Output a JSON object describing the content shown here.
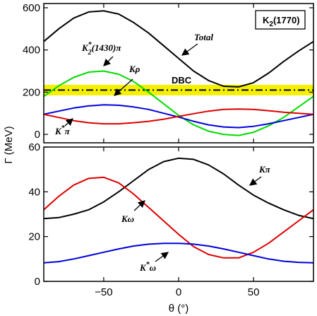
{
  "chart_data": [
    {
      "type": "line",
      "title": "",
      "xlabel": "",
      "ylabel": "",
      "xlim": [
        -90,
        90
      ],
      "ylim": [
        -40,
        620
      ],
      "x_ticks": [
        -50,
        0,
        50
      ],
      "y_ticks": [
        0,
        200,
        400,
        600
      ],
      "y_tick_labels": [
        "0",
        "200",
        "400",
        "600"
      ],
      "x_tick_labels": [
        "",
        "",
        ""
      ],
      "legend_box": {
        "prefix": "K",
        "sub": "2",
        "suffix": "(1770)",
        "color": "#000000",
        "placement": "top-right"
      },
      "band": {
        "label": "DBC",
        "y": 210,
        "half_width": 25,
        "color": "#f5f000",
        "line_color": "#000000"
      },
      "series": [
        {
          "name": "Total",
          "color": "#000000",
          "x": [
            -90,
            -80,
            -70,
            -60,
            -50,
            -40,
            -30,
            -20,
            -10,
            0,
            10,
            20,
            30,
            40,
            50,
            60,
            70,
            80,
            90
          ],
          "values": [
            440,
            500,
            551,
            580,
            585,
            570,
            530,
            480,
            420,
            360,
            300,
            255,
            228,
            225,
            245,
            290,
            345,
            395,
            440
          ]
        },
        {
          "name": "K*2(1430)π",
          "color": "#00dd00",
          "x": [
            -90,
            -80,
            -70,
            -60,
            -50,
            -40,
            -30,
            -20,
            -10,
            0,
            10,
            20,
            30,
            40,
            50,
            60,
            70,
            80,
            90
          ],
          "values": [
            180,
            230,
            270,
            295,
            300,
            285,
            250,
            200,
            145,
            90,
            45,
            15,
            0,
            -5,
            10,
            40,
            80,
            130,
            180
          ]
        },
        {
          "name": "Kρ",
          "color": "#0000dd",
          "x": [
            -90,
            -80,
            -70,
            -60,
            -50,
            -40,
            -30,
            -20,
            -10,
            0,
            10,
            20,
            30,
            40,
            50,
            60,
            70,
            80,
            90
          ],
          "values": [
            95,
            110,
            125,
            135,
            140,
            138,
            130,
            118,
            100,
            82,
            62,
            45,
            35,
            32,
            38,
            50,
            65,
            80,
            95
          ]
        },
        {
          "name": "K*π",
          "color": "#dd0000",
          "x": [
            -90,
            -80,
            -70,
            -60,
            -50,
            -40,
            -30,
            -20,
            -10,
            0,
            10,
            20,
            30,
            40,
            50,
            60,
            70,
            80,
            90
          ],
          "values": [
            95,
            80,
            65,
            55,
            50,
            50,
            55,
            62,
            72,
            85,
            98,
            110,
            118,
            120,
            118,
            112,
            105,
            100,
            95
          ]
        }
      ],
      "annotations": [
        {
          "text": "Total",
          "style": "italic"
        },
        {
          "text_prefix": "K",
          "sup": "*",
          "sub": "2",
          "text_suffix": "(1430)π"
        },
        {
          "text": "Kρ"
        },
        {
          "text": "DBC"
        },
        {
          "text_prefix": "K",
          "sup": "*",
          "text_suffix": "π"
        }
      ]
    },
    {
      "type": "line",
      "title": "",
      "xlabel": "θ (°)",
      "ylabel": "Γ (MeV)",
      "xlim": [
        -90,
        90
      ],
      "ylim": [
        0,
        60
      ],
      "x_ticks": [
        -50,
        0,
        50
      ],
      "x_tick_labels": [
        "−50",
        "0",
        "50"
      ],
      "y_ticks": [
        0,
        20,
        40,
        60
      ],
      "y_tick_labels": [
        "0",
        "20",
        "40",
        "60"
      ],
      "series": [
        {
          "name": "Kπ",
          "color": "#000000",
          "x": [
            -90,
            -80,
            -70,
            -60,
            -50,
            -40,
            -30,
            -20,
            -10,
            0,
            10,
            20,
            30,
            40,
            50,
            60,
            70,
            80,
            90
          ],
          "values": [
            28,
            28.5,
            30,
            32,
            35.5,
            40,
            45,
            50,
            53.5,
            55,
            54.5,
            52,
            48,
            43,
            38.5,
            35,
            32,
            29.5,
            28
          ]
        },
        {
          "name": "Kω",
          "color": "#dd0000",
          "x": [
            -90,
            -80,
            -70,
            -60,
            -50,
            -40,
            -30,
            -20,
            -10,
            0,
            10,
            20,
            30,
            40,
            50,
            60,
            70,
            80,
            90
          ],
          "values": [
            32,
            38,
            43,
            46,
            46.5,
            44,
            39,
            33,
            27,
            21,
            15.5,
            12,
            10.5,
            10.5,
            13,
            17,
            22,
            27,
            32
          ]
        },
        {
          "name": "K*ω",
          "color": "#0000dd",
          "x": [
            -90,
            -80,
            -70,
            -60,
            -50,
            -40,
            -30,
            -20,
            -10,
            0,
            10,
            20,
            30,
            40,
            50,
            60,
            70,
            80,
            90
          ],
          "values": [
            8.3,
            8.8,
            10,
            11.5,
            13,
            14.5,
            15.8,
            16.6,
            17,
            17,
            16.6,
            15.8,
            14.5,
            13,
            11.5,
            10,
            9,
            8.5,
            8.3
          ]
        }
      ],
      "annotations": [
        {
          "text": "Kπ"
        },
        {
          "text": "Kω"
        },
        {
          "text_prefix": "K",
          "sup": "*",
          "text_suffix": "ω"
        }
      ]
    }
  ]
}
